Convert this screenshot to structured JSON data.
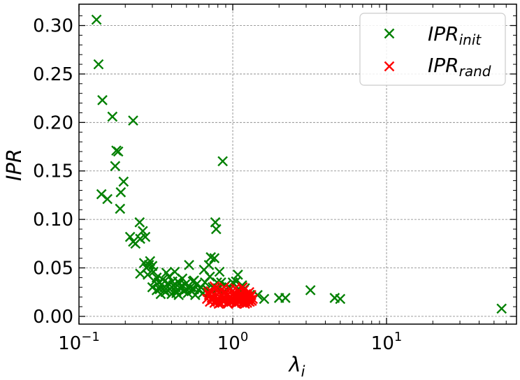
{
  "chart_data": {
    "type": "scatter",
    "xscale": "log",
    "xlim": [
      0.1,
      70
    ],
    "ylim": [
      -0.008,
      0.322
    ],
    "xticks": [
      {
        "value": 0.1,
        "base": "10",
        "exp": "−1"
      },
      {
        "value": 1,
        "base": "10",
        "exp": "0"
      },
      {
        "value": 10,
        "base": "10",
        "exp": "1"
      }
    ],
    "yticks": [
      {
        "value": 0.0,
        "label": "0.00"
      },
      {
        "value": 0.05,
        "label": "0.05"
      },
      {
        "value": 0.1,
        "label": "0.10"
      },
      {
        "value": 0.15,
        "label": "0.15"
      },
      {
        "value": 0.2,
        "label": "0.20"
      },
      {
        "value": 0.25,
        "label": "0.25"
      },
      {
        "value": 0.3,
        "label": "0.30"
      }
    ],
    "xlabel": {
      "main": "λ",
      "sub": "i"
    },
    "ylabel": "IPR",
    "grid": true,
    "legend_position": "top-right",
    "marker": "x",
    "series": [
      {
        "name": "IPR",
        "name_sub": "init",
        "color": "#008000",
        "points": [
          [
            0.13,
            0.306
          ],
          [
            0.134,
            0.26
          ],
          [
            0.142,
            0.223
          ],
          [
            0.14,
            0.126
          ],
          [
            0.153,
            0.121
          ],
          [
            0.165,
            0.206
          ],
          [
            0.175,
            0.171
          ],
          [
            0.18,
            0.17
          ],
          [
            0.172,
            0.155
          ],
          [
            0.187,
            0.128
          ],
          [
            0.185,
            0.111
          ],
          [
            0.195,
            0.139
          ],
          [
            0.225,
            0.202
          ],
          [
            0.215,
            0.082
          ],
          [
            0.225,
            0.077
          ],
          [
            0.233,
            0.075
          ],
          [
            0.248,
            0.097
          ],
          [
            0.26,
            0.088
          ],
          [
            0.25,
            0.08
          ],
          [
            0.27,
            0.082
          ],
          [
            0.25,
            0.044
          ],
          [
            0.265,
            0.055
          ],
          [
            0.275,
            0.05
          ],
          [
            0.285,
            0.053
          ],
          [
            0.28,
            0.043
          ],
          [
            0.29,
            0.057
          ],
          [
            0.3,
            0.052
          ],
          [
            0.305,
            0.046
          ],
          [
            0.31,
            0.036
          ],
          [
            0.3,
            0.03
          ],
          [
            0.32,
            0.04
          ],
          [
            0.33,
            0.035
          ],
          [
            0.335,
            0.028
          ],
          [
            0.34,
            0.023
          ],
          [
            0.345,
            0.033
          ],
          [
            0.35,
            0.038
          ],
          [
            0.36,
            0.03
          ],
          [
            0.365,
            0.025
          ],
          [
            0.37,
            0.045
          ],
          [
            0.38,
            0.034
          ],
          [
            0.385,
            0.041
          ],
          [
            0.39,
            0.028
          ],
          [
            0.4,
            0.023
          ],
          [
            0.405,
            0.036
          ],
          [
            0.41,
            0.032
          ],
          [
            0.42,
            0.046
          ],
          [
            0.425,
            0.03
          ],
          [
            0.43,
            0.026
          ],
          [
            0.44,
            0.036
          ],
          [
            0.445,
            0.022
          ],
          [
            0.45,
            0.034
          ],
          [
            0.455,
            0.029
          ],
          [
            0.46,
            0.031
          ],
          [
            0.47,
            0.039
          ],
          [
            0.48,
            0.026
          ],
          [
            0.49,
            0.033
          ],
          [
            0.5,
            0.028
          ],
          [
            0.51,
            0.024
          ],
          [
            0.52,
            0.053
          ],
          [
            0.53,
            0.03
          ],
          [
            0.54,
            0.026
          ],
          [
            0.55,
            0.036
          ],
          [
            0.56,
            0.028
          ],
          [
            0.57,
            0.022
          ],
          [
            0.58,
            0.033
          ],
          [
            0.6,
            0.027
          ],
          [
            0.62,
            0.03
          ],
          [
            0.64,
            0.024
          ],
          [
            0.65,
            0.048
          ],
          [
            0.66,
            0.035
          ],
          [
            0.68,
            0.028
          ],
          [
            0.7,
            0.053
          ],
          [
            0.71,
            0.041
          ],
          [
            0.72,
            0.061
          ],
          [
            0.74,
            0.03
          ],
          [
            0.76,
            0.06
          ],
          [
            0.77,
            0.097
          ],
          [
            0.78,
            0.09
          ],
          [
            0.79,
            0.035
          ],
          [
            0.8,
            0.029
          ],
          [
            0.82,
            0.046
          ],
          [
            0.84,
            0.035
          ],
          [
            0.86,
            0.16
          ],
          [
            0.88,
            0.026
          ],
          [
            0.9,
            0.032
          ],
          [
            0.95,
            0.03
          ],
          [
            1.0,
            0.035
          ],
          [
            1.05,
            0.036
          ],
          [
            1.08,
            0.043
          ],
          [
            1.1,
            0.028
          ],
          [
            1.15,
            0.032
          ],
          [
            1.2,
            0.029
          ],
          [
            1.3,
            0.022
          ],
          [
            1.45,
            0.022
          ],
          [
            1.6,
            0.018
          ],
          [
            2.0,
            0.019
          ],
          [
            2.2,
            0.019
          ],
          [
            3.2,
            0.027
          ],
          [
            4.6,
            0.019
          ],
          [
            5.0,
            0.018
          ],
          [
            56.0,
            0.008
          ],
          [
            0.43,
            0.024
          ],
          [
            0.56,
            0.037
          ],
          [
            0.36,
            0.027
          ],
          [
            0.32,
            0.027
          ]
        ]
      },
      {
        "name": "IPR",
        "name_sub": "rand",
        "color": "#ff0000",
        "points": [
          [
            0.68,
            0.018
          ],
          [
            0.7,
            0.022
          ],
          [
            0.71,
            0.015
          ],
          [
            0.72,
            0.026
          ],
          [
            0.73,
            0.019
          ],
          [
            0.74,
            0.017
          ],
          [
            0.75,
            0.023
          ],
          [
            0.76,
            0.014
          ],
          [
            0.77,
            0.021
          ],
          [
            0.78,
            0.029
          ],
          [
            0.79,
            0.018
          ],
          [
            0.8,
            0.016
          ],
          [
            0.81,
            0.024
          ],
          [
            0.82,
            0.02
          ],
          [
            0.83,
            0.014
          ],
          [
            0.84,
            0.027
          ],
          [
            0.85,
            0.018
          ],
          [
            0.86,
            0.022
          ],
          [
            0.87,
            0.015
          ],
          [
            0.88,
            0.019
          ],
          [
            0.89,
            0.025
          ],
          [
            0.9,
            0.017
          ],
          [
            0.91,
            0.021
          ],
          [
            0.92,
            0.014
          ],
          [
            0.93,
            0.023
          ],
          [
            0.94,
            0.019
          ],
          [
            0.95,
            0.016
          ],
          [
            0.96,
            0.028
          ],
          [
            0.97,
            0.02
          ],
          [
            0.98,
            0.015
          ],
          [
            0.99,
            0.022
          ],
          [
            1.0,
            0.018
          ],
          [
            1.01,
            0.024
          ],
          [
            1.02,
            0.016
          ],
          [
            1.03,
            0.02
          ],
          [
            1.04,
            0.014
          ],
          [
            1.05,
            0.023
          ],
          [
            1.06,
            0.019
          ],
          [
            1.07,
            0.017
          ],
          [
            1.08,
            0.026
          ],
          [
            1.09,
            0.015
          ],
          [
            1.1,
            0.021
          ],
          [
            1.11,
            0.018
          ],
          [
            1.12,
            0.024
          ],
          [
            1.13,
            0.016
          ],
          [
            1.14,
            0.02
          ],
          [
            1.15,
            0.014
          ],
          [
            1.16,
            0.022
          ],
          [
            1.17,
            0.018
          ],
          [
            1.18,
            0.027
          ],
          [
            1.19,
            0.015
          ],
          [
            1.2,
            0.02
          ],
          [
            1.21,
            0.017
          ],
          [
            1.22,
            0.023
          ],
          [
            1.23,
            0.019
          ],
          [
            1.24,
            0.014
          ],
          [
            1.25,
            0.021
          ],
          [
            1.26,
            0.016
          ],
          [
            1.27,
            0.018
          ],
          [
            1.28,
            0.025
          ],
          [
            1.29,
            0.015
          ],
          [
            1.3,
            0.02
          ],
          [
            1.31,
            0.017
          ],
          [
            1.32,
            0.022
          ],
          [
            1.33,
            0.016
          ],
          [
            0.76,
            0.031
          ],
          [
            0.88,
            0.03
          ],
          [
            1.04,
            0.029
          ],
          [
            1.16,
            0.03
          ],
          [
            0.81,
            0.013
          ],
          [
            0.93,
            0.013
          ],
          [
            1.05,
            0.013
          ],
          [
            1.2,
            0.013
          ],
          [
            1.35,
            0.018
          ],
          [
            0.69,
            0.025
          ]
        ]
      }
    ]
  }
}
